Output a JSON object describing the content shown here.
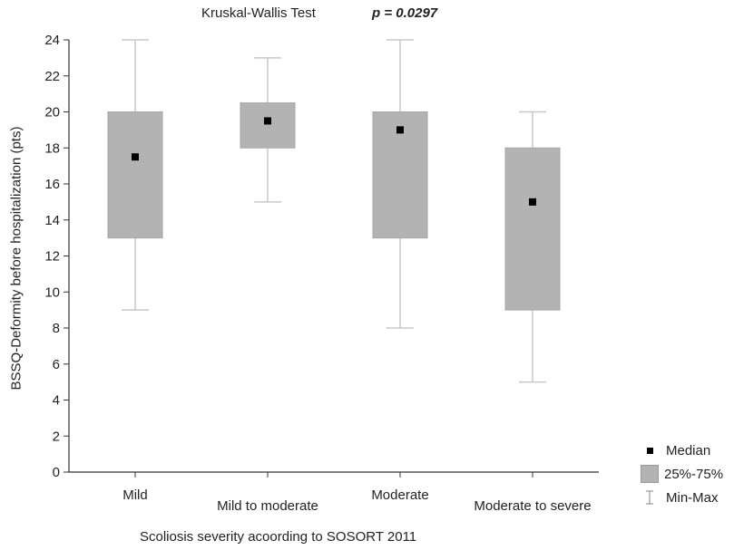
{
  "title": "Kruskal-Wallis Test",
  "p_value_label": "p = 0.0297",
  "colors": {
    "box": "#b3b3b3",
    "box_border": "#a6a6a6",
    "whisker": "#c8c8c8",
    "median": "#000000",
    "axis": "#333333"
  },
  "legend": {
    "median": "Median",
    "iqr": "25%-75%",
    "range": "Min-Max"
  },
  "chart_data": {
    "type": "boxplot",
    "title": "Kruskal-Wallis Test",
    "annotation": "p = 0.0297",
    "xlabel": "Scoliosis severity acoording to SOSORT 2011",
    "ylabel": "BSSQ-Deformity before hospitalization (pts)",
    "ylim": [
      0,
      24
    ],
    "yticks": [
      0,
      2,
      4,
      6,
      8,
      10,
      12,
      14,
      16,
      18,
      20,
      22,
      24
    ],
    "grid": false,
    "legend_position": "bottom-right",
    "categories": [
      "Mild",
      "Mild to moderate",
      "Moderate",
      "Moderate to severe"
    ],
    "series": [
      {
        "name": "Median",
        "values": [
          17.5,
          19.5,
          19,
          15
        ]
      },
      {
        "name": "25%-75%",
        "values": [
          [
            13,
            20
          ],
          [
            18,
            20.5
          ],
          [
            13,
            20
          ],
          [
            9,
            18
          ]
        ]
      },
      {
        "name": "Min-Max",
        "values": [
          [
            9,
            24
          ],
          [
            15,
            23
          ],
          [
            8,
            24
          ],
          [
            5,
            20
          ]
        ]
      }
    ]
  }
}
